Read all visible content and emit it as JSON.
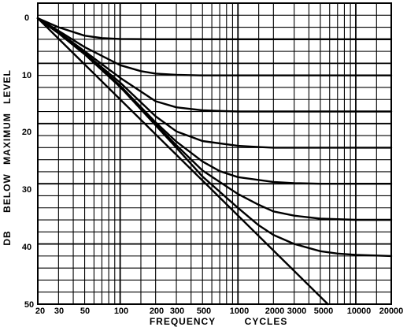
{
  "chart_data": {
    "type": "line",
    "x_scale": "log",
    "xlim": [
      20,
      20000
    ],
    "ylim": [
      0,
      50
    ],
    "y_inverted": true,
    "grid": true,
    "x_tick_labels": [
      "20",
      "30",
      "50",
      "100",
      "200",
      "300",
      "500",
      "1000",
      "2000",
      "3000",
      "5000",
      "10000",
      "20000"
    ],
    "y_tick_labels": [
      "0",
      "10",
      "20",
      "30",
      "40",
      "50"
    ],
    "xlabel_parts": [
      "FREQUENCY",
      "CYCLES"
    ],
    "ylabel_words": [
      "DB",
      "BELOW",
      "MAXIMUM",
      "LEVEL"
    ],
    "series": [
      {
        "x": [
          20,
          30,
          50,
          70,
          100,
          200,
          500,
          1000,
          5000,
          20000
        ],
        "y": [
          2.5,
          4.0,
          5.4,
          5.8,
          5.95,
          6.0,
          6.0,
          6.0,
          6.0,
          6.0
        ]
      },
      {
        "x": [
          20,
          30,
          50,
          100,
          150,
          200,
          300,
          500,
          1000,
          5000,
          20000
        ],
        "y": [
          2.5,
          4.6,
          7.3,
          10.3,
          11.3,
          11.7,
          11.9,
          12.0,
          12.0,
          12.0,
          12.0
        ]
      },
      {
        "x": [
          20,
          30,
          50,
          100,
          200,
          300,
          500,
          700,
          1000,
          2000,
          5000,
          20000
        ],
        "y": [
          2.5,
          4.8,
          8.0,
          12.4,
          16.3,
          17.3,
          17.8,
          17.9,
          18.0,
          18.0,
          18.0,
          18.0
        ]
      },
      {
        "x": [
          20,
          30,
          50,
          100,
          200,
          300,
          500,
          1000,
          1500,
          2000,
          5000,
          20000
        ],
        "y": [
          2.5,
          4.9,
          8.3,
          13.2,
          18.8,
          21.3,
          22.9,
          23.7,
          23.9,
          24.0,
          24.0,
          24.0
        ]
      },
      {
        "x": [
          20,
          30,
          50,
          100,
          200,
          300,
          500,
          700,
          1000,
          2000,
          3000,
          5000,
          10000,
          20000
        ],
        "y": [
          2.5,
          5.0,
          8.4,
          13.7,
          19.8,
          23.0,
          26.3,
          27.9,
          28.9,
          29.7,
          29.9,
          30.0,
          30.0,
          30.0
        ]
      },
      {
        "x": [
          20,
          30,
          50,
          100,
          200,
          300,
          500,
          1000,
          1500,
          2000,
          3000,
          5000,
          10000,
          20000
        ],
        "y": [
          2.5,
          5.0,
          8.5,
          13.9,
          20.1,
          23.6,
          27.8,
          31.7,
          33.5,
          34.6,
          35.3,
          35.8,
          36.0,
          36.0
        ]
      },
      {
        "x": [
          20,
          30,
          50,
          100,
          200,
          300,
          500,
          1000,
          1500,
          2000,
          3000,
          5000,
          7000,
          10000,
          20000
        ],
        "y": [
          2.5,
          5.0,
          8.5,
          13.9,
          20.3,
          24.0,
          28.8,
          34.0,
          36.9,
          38.5,
          40.0,
          41.2,
          41.6,
          41.8,
          42.0
        ]
      },
      {
        "x": [
          20,
          5800
        ],
        "y": [
          2.5,
          50
        ]
      }
    ]
  }
}
